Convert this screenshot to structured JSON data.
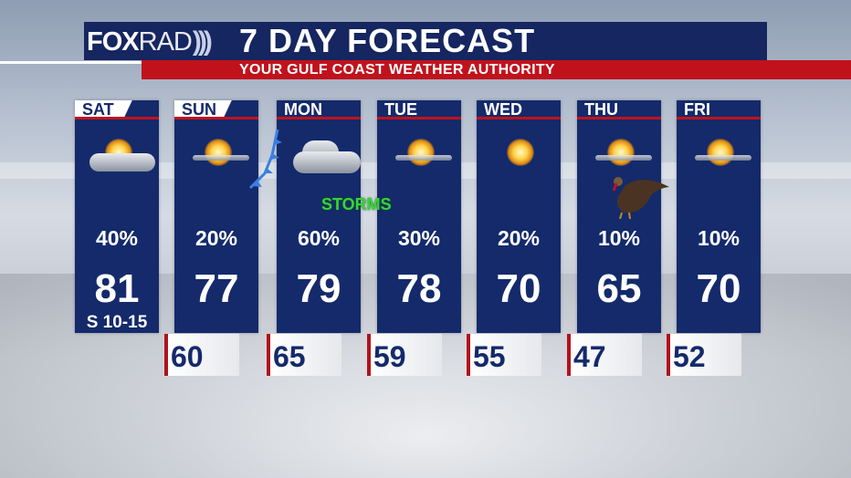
{
  "header": {
    "logo_fox": "FOX",
    "logo_rad": "RAD",
    "title": "7 DAY FORECAST",
    "subtitle": "YOUR GULF COAST WEATHER AUTHORITY"
  },
  "annotation": "STORMS",
  "colors": {
    "navy": "#142a6b",
    "red": "#c1121c",
    "storms": "#39d23a"
  },
  "days": [
    {
      "day": "SAT",
      "icon": "partly-cloudy-sun",
      "pop": "40%",
      "high": "81",
      "wind": "S 10-15"
    },
    {
      "day": "SUN",
      "icon": "mostly-sunny",
      "pop": "20%",
      "high": "77",
      "low": "60"
    },
    {
      "day": "MON",
      "icon": "cloudy-storms",
      "pop": "60%",
      "high": "79",
      "low": "65"
    },
    {
      "day": "TUE",
      "icon": "mostly-sunny",
      "pop": "30%",
      "high": "78",
      "low": "59"
    },
    {
      "day": "WED",
      "icon": "sunny",
      "pop": "20%",
      "high": "70",
      "low": "55"
    },
    {
      "day": "THU",
      "icon": "mostly-sunny",
      "pop": "10%",
      "high": "65",
      "low": "47"
    },
    {
      "day": "FRI",
      "icon": "mostly-sunny",
      "pop": "10%",
      "high": "70",
      "low": "52"
    }
  ]
}
